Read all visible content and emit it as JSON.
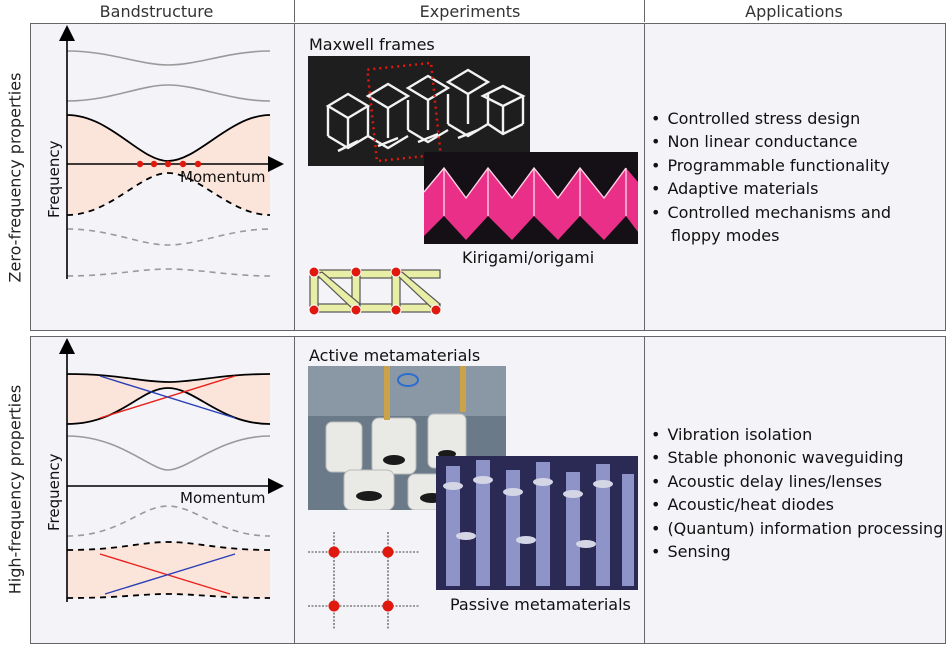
{
  "columns": {
    "bandstructure": "Bandstructure",
    "experiments": "Experiments",
    "applications": "Applications"
  },
  "rows": {
    "zero": {
      "label": "Zero-frequency properties",
      "axis": {
        "y": "Frequency",
        "x": "Momentum"
      },
      "experiments": {
        "title": "Maxwell frames",
        "caption": "Kirigami/origami"
      },
      "applications": [
        {
          "text": "Controlled stress design"
        },
        {
          "text": "Non linear conductance"
        },
        {
          "text": "Programmable functionality"
        },
        {
          "text": "Adaptive materials"
        },
        {
          "text": "Controlled mechanisms and"
        },
        {
          "text": "floppy modes",
          "continuation": true
        }
      ]
    },
    "high": {
      "label": "High-frequency properties",
      "axis": {
        "y": "Frequency",
        "x": "Momentum"
      },
      "experiments": {
        "title": "Active metamaterials",
        "caption": "Passive metamaterials"
      },
      "applications": [
        {
          "text": "Vibration isolation"
        },
        {
          "text": "Stable phononic waveguiding"
        },
        {
          "text": "Acoustic delay lines/lenses"
        },
        {
          "text": "Acoustic/heat diodes"
        },
        {
          "text": "(Quantum) information processing"
        },
        {
          "text": "Sensing"
        }
      ]
    }
  },
  "colors": {
    "band_fill": "#fbe4da",
    "red_line": "#e8201a",
    "blue_line": "#2a3fb5",
    "grey_band": "#9a9a9a",
    "truss": "#e9eea6",
    "magenta": "#ea2f88",
    "node_red": "#e0180e"
  }
}
